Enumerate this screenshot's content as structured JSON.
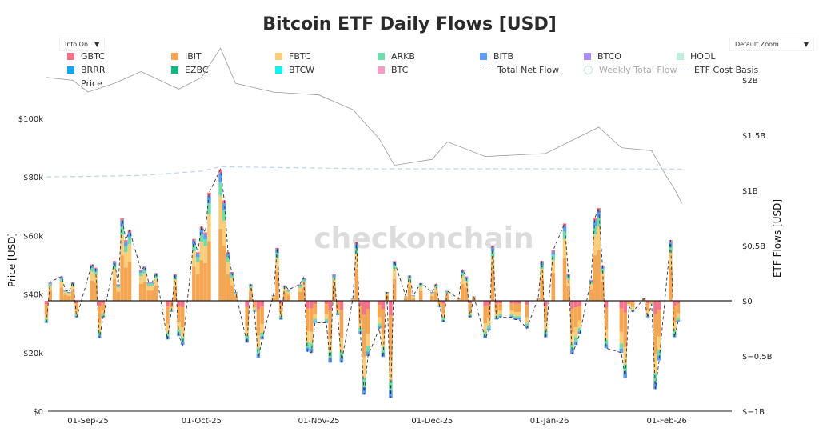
{
  "chart_data": {
    "type": "bar",
    "title": "Bitcoin ETF Daily Flows [USD]",
    "watermark": "checkonchain",
    "controls": {
      "info": "Info On",
      "zoom": "Default Zoom",
      "arrow": "▼"
    },
    "ylabel_left": "Price [USD]",
    "ylabel_right": "ETF Flows [USD]",
    "ylim_left": [
      0,
      110000
    ],
    "ylim_right": [
      -1000000000,
      2000000000
    ],
    "left_ticks": [
      "$0",
      "$20k",
      "$40k",
      "$60k",
      "$80k",
      "$100k"
    ],
    "right_ticks": [
      "$−1B",
      "$−0.5B",
      "$0",
      "$0.5B",
      "$1B",
      "$1.5B",
      "$2B"
    ],
    "x_ticks": [
      "01-Sep-25",
      "01-Oct-25",
      "01-Nov-25",
      "01-Dec-25",
      "01-Jan-26",
      "01-Feb-26"
    ],
    "grid": false,
    "legend_position": "top",
    "legend": [
      {
        "name": "GBTC",
        "color": "#f4728c",
        "kind": "square"
      },
      {
        "name": "IBIT",
        "color": "#f5a653",
        "kind": "square"
      },
      {
        "name": "FBTC",
        "color": "#f9cd7a",
        "kind": "square"
      },
      {
        "name": "ARKB",
        "color": "#6fdcab",
        "kind": "square"
      },
      {
        "name": "BITB",
        "color": "#5c9df5",
        "kind": "square"
      },
      {
        "name": "BTCO",
        "color": "#a98df5",
        "kind": "square"
      },
      {
        "name": "HODL",
        "color": "#bdf0da",
        "kind": "square"
      },
      {
        "name": "BRRR",
        "color": "#18a3ef",
        "kind": "square"
      },
      {
        "name": "EZBC",
        "color": "#12b97f",
        "kind": "square"
      },
      {
        "name": "BTCW",
        "color": "#12f2f2",
        "kind": "square"
      },
      {
        "name": "BTC",
        "color": "#f79cc4",
        "kind": "square"
      },
      {
        "name": "Total Net Flow",
        "color": "#333333",
        "kind": "dash"
      },
      {
        "name": "Weekly Total Flow",
        "color": "#b7ecd6",
        "kind": "circle"
      },
      {
        "name": "ETF Cost Basis",
        "color": "#bcd6f5",
        "kind": "dashlight"
      },
      {
        "name": "Price",
        "color": "#999999",
        "kind": "line"
      }
    ],
    "net_flow_usd_billions": [
      [
        "2025-08-21",
        -0.2
      ],
      [
        "2025-08-22",
        0.17
      ],
      [
        "2025-08-25",
        0.22
      ],
      [
        "2025-08-26",
        0.1
      ],
      [
        "2025-08-27",
        0.08
      ],
      [
        "2025-08-28",
        0.17
      ],
      [
        "2025-08-29",
        -0.15
      ],
      [
        "2025-09-02",
        0.33
      ],
      [
        "2025-09-03",
        0.3
      ],
      [
        "2025-09-04",
        -0.34
      ],
      [
        "2025-09-05",
        -0.15
      ],
      [
        "2025-09-08",
        0.36
      ],
      [
        "2025-09-09",
        0.15
      ],
      [
        "2025-09-10",
        0.75
      ],
      [
        "2025-09-11",
        0.55
      ],
      [
        "2025-09-12",
        0.64
      ],
      [
        "2025-09-15",
        0.28
      ],
      [
        "2025-09-16",
        0.31
      ],
      [
        "2025-09-17",
        0.17
      ],
      [
        "2025-09-18",
        0.17
      ],
      [
        "2025-09-19",
        0.25
      ],
      [
        "2025-09-22",
        -0.35
      ],
      [
        "2025-09-23",
        -0.1
      ],
      [
        "2025-09-24",
        0.24
      ],
      [
        "2025-09-25",
        -0.32
      ],
      [
        "2025-09-26",
        -0.4
      ],
      [
        "2025-09-29",
        0.56
      ],
      [
        "2025-09-30",
        0.44
      ],
      [
        "2025-10-01",
        0.67
      ],
      [
        "2025-10-02",
        0.62
      ],
      [
        "2025-10-03",
        0.98
      ],
      [
        "2025-10-06",
        1.19
      ],
      [
        "2025-10-07",
        0.91
      ],
      [
        "2025-10-08",
        0.44
      ],
      [
        "2025-10-09",
        0.26
      ],
      [
        "2025-10-10",
        0.08
      ],
      [
        "2025-10-13",
        -0.38
      ],
      [
        "2025-10-14",
        0.15
      ],
      [
        "2025-10-15",
        -0.1
      ],
      [
        "2025-10-16",
        -0.52
      ],
      [
        "2025-10-17",
        -0.35
      ],
      [
        "2025-10-20",
        0.05
      ],
      [
        "2025-10-21",
        0.48
      ],
      [
        "2025-10-22",
        -0.17
      ],
      [
        "2025-10-23",
        0.14
      ],
      [
        "2025-10-24",
        0.1
      ],
      [
        "2025-10-27",
        0.15
      ],
      [
        "2025-10-28",
        0.21
      ],
      [
        "2025-10-29",
        -0.46
      ],
      [
        "2025-10-30",
        -0.47
      ],
      [
        "2025-10-31",
        -0.2
      ],
      [
        "2025-11-03",
        -0.2
      ],
      [
        "2025-11-04",
        -0.56
      ],
      [
        "2025-11-05",
        0.24
      ],
      [
        "2025-11-06",
        -0.13
      ],
      [
        "2025-11-07",
        -0.56
      ],
      [
        "2025-11-10",
        0.02
      ],
      [
        "2025-11-11",
        0.53
      ],
      [
        "2025-11-12",
        -0.3
      ],
      [
        "2025-11-13",
        -0.85
      ],
      [
        "2025-11-14",
        -0.5
      ],
      [
        "2025-11-17",
        -0.25
      ],
      [
        "2025-11-18",
        -0.51
      ],
      [
        "2025-11-19",
        0.08
      ],
      [
        "2025-11-20",
        -0.88
      ],
      [
        "2025-11-21",
        0.36
      ],
      [
        "2025-11-24",
        0.04
      ],
      [
        "2025-11-25",
        0.23
      ],
      [
        "2025-11-26",
        0.05
      ],
      [
        "2025-11-28",
        0.16
      ],
      [
        "2025-12-01",
        0.08
      ],
      [
        "2025-12-02",
        0.15
      ],
      [
        "2025-12-03",
        -0.06
      ],
      [
        "2025-12-04",
        -0.19
      ],
      [
        "2025-12-05",
        0.09
      ],
      [
        "2025-12-08",
        0.02
      ],
      [
        "2025-12-09",
        0.28
      ],
      [
        "2025-12-10",
        0.22
      ],
      [
        "2025-12-11",
        -0.15
      ],
      [
        "2025-12-12",
        0.04
      ],
      [
        "2025-12-15",
        -0.34
      ],
      [
        "2025-12-16",
        -0.27
      ],
      [
        "2025-12-17",
        0.5
      ],
      [
        "2025-12-18",
        -0.17
      ],
      [
        "2025-12-19",
        -0.15
      ],
      [
        "2025-12-22",
        -0.15
      ],
      [
        "2025-12-23",
        -0.17
      ],
      [
        "2025-12-24",
        -0.17
      ],
      [
        "2025-12-26",
        -0.25
      ],
      [
        "2025-12-29",
        0.02
      ],
      [
        "2025-12-30",
        0.36
      ],
      [
        "2025-12-31",
        -0.33
      ],
      [
        "2026-01-02",
        0.46
      ],
      [
        "2026-01-05",
        0.7
      ],
      [
        "2026-01-06",
        0.24
      ],
      [
        "2026-01-07",
        -0.48
      ],
      [
        "2026-01-08",
        -0.4
      ],
      [
        "2026-01-09",
        -0.3
      ],
      [
        "2026-01-12",
        0.19
      ],
      [
        "2026-01-13",
        0.75
      ],
      [
        "2026-01-14",
        0.84
      ],
      [
        "2026-01-15",
        0.32
      ],
      [
        "2026-01-16",
        -0.43
      ],
      [
        "2026-01-20",
        -0.47
      ],
      [
        "2026-01-21",
        -0.7
      ],
      [
        "2026-01-22",
        -0.05
      ],
      [
        "2026-01-23",
        -0.1
      ],
      [
        "2026-01-26",
        0.02
      ],
      [
        "2026-01-27",
        -0.15
      ],
      [
        "2026-01-28",
        -0.03
      ],
      [
        "2026-01-29",
        -0.8
      ],
      [
        "2026-01-30",
        -0.54
      ],
      [
        "2026-02-02",
        0.55
      ],
      [
        "2026-02-03",
        -0.33
      ],
      [
        "2026-02-04",
        -0.19
      ]
    ],
    "price_usd_thousands": [
      [
        "2025-08-21",
        114
      ],
      [
        "2025-08-28",
        113
      ],
      [
        "2025-09-01",
        109
      ],
      [
        "2025-09-08",
        112
      ],
      [
        "2025-09-15",
        116
      ],
      [
        "2025-09-25",
        110
      ],
      [
        "2025-10-01",
        114
      ],
      [
        "2025-10-06",
        124
      ],
      [
        "2025-10-10",
        112
      ],
      [
        "2025-10-20",
        109
      ],
      [
        "2025-11-01",
        108
      ],
      [
        "2025-11-10",
        103
      ],
      [
        "2025-11-17",
        93
      ],
      [
        "2025-11-21",
        84
      ],
      [
        "2025-12-01",
        86
      ],
      [
        "2025-12-05",
        92
      ],
      [
        "2025-12-15",
        87
      ],
      [
        "2025-12-31",
        88
      ],
      [
        "2026-01-14",
        97
      ],
      [
        "2026-01-20",
        90
      ],
      [
        "2026-01-28",
        89
      ],
      [
        "2026-02-01",
        80
      ],
      [
        "2026-02-03",
        76
      ],
      [
        "2026-02-05",
        71
      ]
    ],
    "etf_cost_basis_usd_thousands": [
      [
        "2025-08-21",
        80
      ],
      [
        "2025-09-15",
        80.5
      ],
      [
        "2025-10-01",
        82
      ],
      [
        "2025-10-06",
        83.5
      ],
      [
        "2025-11-15",
        82.8
      ],
      [
        "2026-01-01",
        82.8
      ],
      [
        "2026-02-05",
        82.7
      ]
    ]
  }
}
